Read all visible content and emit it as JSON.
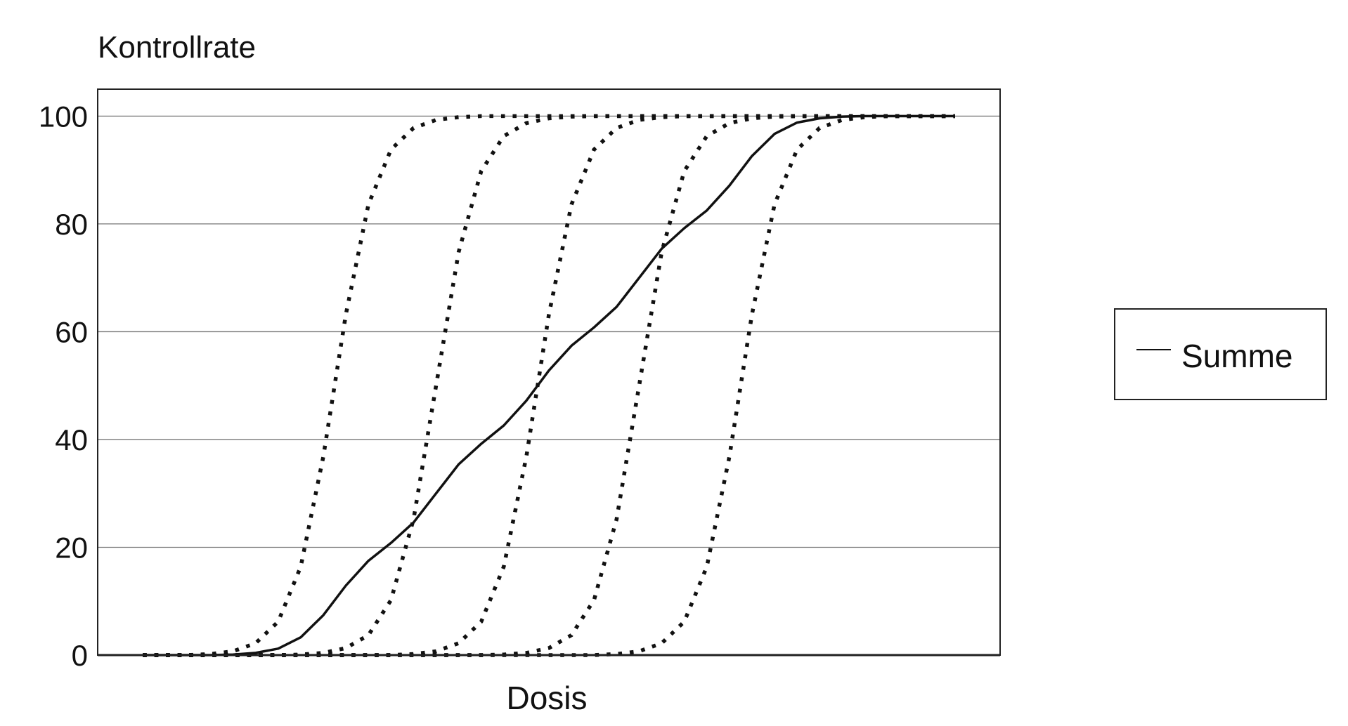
{
  "chart_data": {
    "type": "line",
    "title": "",
    "ylabel": "Kontrollrate",
    "xlabel": "Dosis",
    "ylim": [
      0,
      105
    ],
    "xlim": [
      0,
      100
    ],
    "yticks": [
      0,
      20,
      40,
      60,
      80,
      100
    ],
    "grid": "horizontal",
    "legend": {
      "placement": "right",
      "entries": [
        "Summe"
      ]
    },
    "colors": {
      "line": "#111111",
      "grid": "#777777",
      "frame": "#222222"
    },
    "x": [
      5,
      7.5,
      10,
      12.5,
      15,
      17.5,
      20,
      22.5,
      25,
      27.5,
      30,
      32.5,
      35,
      37.5,
      40,
      42.5,
      45,
      47.5,
      50,
      52.5,
      55,
      57.5,
      60,
      62.5,
      65,
      67.5,
      70,
      72.5,
      75,
      77.5,
      80,
      82.5,
      85,
      87.5,
      90,
      92.5,
      95
    ],
    "series": [
      {
        "style": "dotted",
        "values": [
          0,
          0,
          0,
          0.2,
          0.7,
          2.2,
          6.2,
          16.4,
          36.8,
          63.2,
          83.6,
          93.8,
          97.8,
          99.3,
          99.8,
          100,
          100,
          100,
          100,
          100,
          100,
          100,
          100,
          100,
          100,
          100,
          100,
          100,
          100,
          100,
          100,
          100,
          100,
          100,
          100,
          100,
          100
        ]
      },
      {
        "style": "dotted",
        "values": [
          0,
          0,
          0,
          0,
          0,
          0,
          0,
          0.1,
          0.4,
          1.3,
          3.7,
          10.2,
          25.2,
          50,
          74.8,
          89.8,
          96.3,
          98.7,
          99.6,
          99.9,
          100,
          100,
          100,
          100,
          100,
          100,
          100,
          100,
          100,
          100,
          100,
          100,
          100,
          100,
          100,
          100,
          100
        ]
      },
      {
        "style": "dotted",
        "values": [
          0,
          0,
          0,
          0,
          0,
          0,
          0,
          0,
          0,
          0,
          0,
          0,
          0.2,
          0.7,
          2.2,
          6.2,
          16.4,
          36.8,
          63.2,
          83.6,
          93.8,
          97.8,
          99.3,
          99.8,
          100,
          100,
          100,
          100,
          100,
          100,
          100,
          100,
          100,
          100,
          100,
          100,
          100
        ]
      },
      {
        "style": "dotted",
        "values": [
          0,
          0,
          0,
          0,
          0,
          0,
          0,
          0,
          0,
          0,
          0,
          0,
          0,
          0,
          0,
          0,
          0.1,
          0.4,
          1.3,
          3.7,
          10.2,
          25.2,
          50,
          74.8,
          89.8,
          96.3,
          98.7,
          99.6,
          99.9,
          100,
          100,
          100,
          100,
          100,
          100,
          100,
          100
        ]
      },
      {
        "style": "dotted",
        "values": [
          0,
          0,
          0,
          0,
          0,
          0,
          0,
          0,
          0,
          0,
          0,
          0,
          0,
          0,
          0,
          0,
          0,
          0,
          0,
          0,
          0,
          0.2,
          0.7,
          2.2,
          6.2,
          16.4,
          36.8,
          63.2,
          83.6,
          93.8,
          97.8,
          99.3,
          99.8,
          100,
          100,
          100,
          100
        ]
      },
      {
        "name": "Summe",
        "style": "solid",
        "values": [
          0,
          0,
          0,
          0,
          0.1,
          0.4,
          1.2,
          3.3,
          7.4,
          12.9,
          17.5,
          20.8,
          24.6,
          30.0,
          35.4,
          39.2,
          42.6,
          47.2,
          52.8,
          57.4,
          60.8,
          64.6,
          70.0,
          75.4,
          79.2,
          82.5,
          87.1,
          92.6,
          96.7,
          98.8,
          99.6,
          99.9,
          100,
          100,
          100,
          100,
          100
        ]
      }
    ]
  }
}
